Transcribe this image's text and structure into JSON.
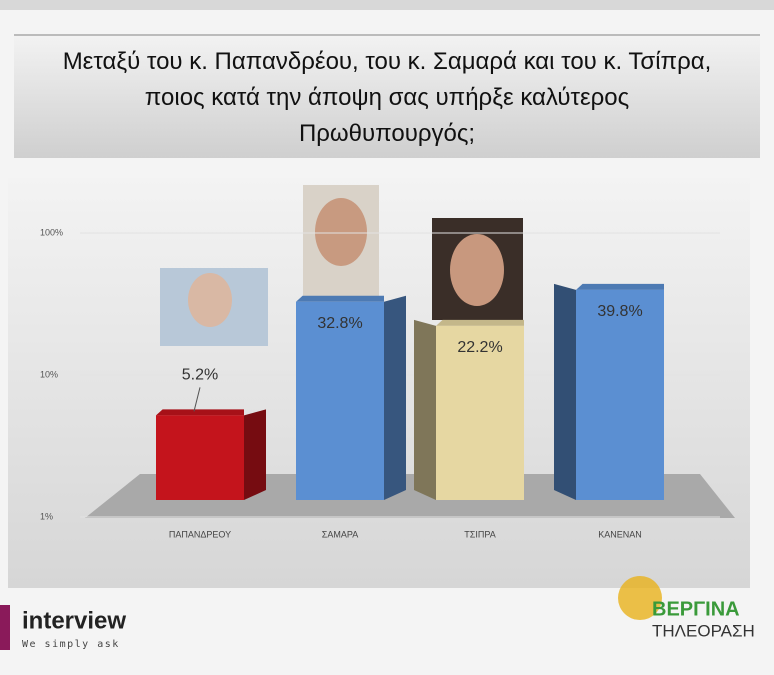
{
  "chart_data": {
    "type": "bar",
    "title": "Μεταξύ του κ. Παπανδρέου, του κ. Σαμαρά και του κ. Τσίπρα, ποιος κατά την άποψη σας υπήρξε καλύτερος Πρωθυπουργός;",
    "categories": [
      "ΠΑΠΑΝΔΡΕΟΥ",
      "ΣΑΜΑΡΑ",
      "ΤΣΙΠΡΑ",
      "ΚΑΝΕΝΑΝ"
    ],
    "values": [
      5.2,
      32.8,
      22.2,
      39.8
    ],
    "value_labels": [
      "5.2%",
      "32.8%",
      "22.2%",
      "39.8%"
    ],
    "colors": [
      "#c4141c",
      "#5b8fd2",
      "#e6d7a2",
      "#5b8fd2"
    ],
    "log_scale": true,
    "ylim": [
      1,
      100
    ],
    "yticks": [
      {
        "value": 1,
        "label": "1%"
      },
      {
        "value": 10,
        "label": "10%"
      },
      {
        "value": 100,
        "label": "100%"
      }
    ],
    "grid": true
  },
  "branding": {
    "pollster": "interview",
    "slogan": "We simply ask",
    "channel": "ΒΕΡΓΙΝΑ",
    "channel_sub": "ΤΗΛΕΟΡΑΣΗ"
  }
}
